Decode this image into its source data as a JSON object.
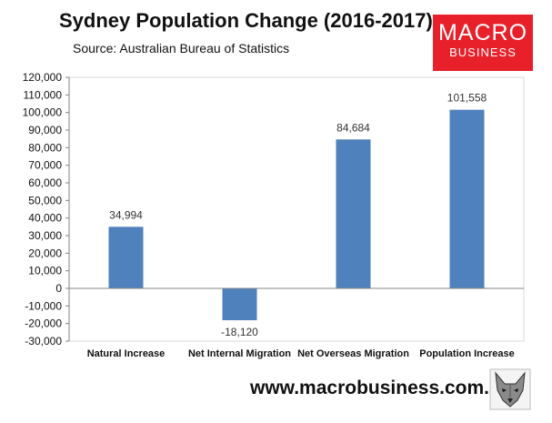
{
  "chart_data": {
    "type": "bar",
    "title": "Sydney Population Change (2016-2017)",
    "subtitle": "Source: Australian Bureau of Statistics",
    "categories": [
      "Natural Increase",
      "Net Internal Migration",
      "Net Overseas Migration",
      "Population Increase"
    ],
    "values": [
      34994,
      -18120,
      84684,
      101558
    ],
    "value_labels": [
      "34,994",
      "-18,120",
      "84,684",
      "101,558"
    ],
    "ylim": [
      -30000,
      120000
    ],
    "yticks": [
      -30000,
      -20000,
      -10000,
      0,
      10000,
      20000,
      30000,
      40000,
      50000,
      60000,
      70000,
      80000,
      90000,
      100000,
      110000,
      120000
    ],
    "ytick_labels": [
      "-30,000",
      "-20,000",
      "-10,000",
      "0",
      "10,000",
      "20,000",
      "30,000",
      "40,000",
      "50,000",
      "60,000",
      "70,000",
      "80,000",
      "90,000",
      "100,000",
      "110,000",
      "120,000"
    ],
    "xlabel": "",
    "ylabel": "",
    "grid": false,
    "bar_color": "#4f81bd"
  },
  "logo": {
    "line1": "MACRO",
    "line2": "BUSINESS",
    "color": "#e8202a"
  },
  "footer": {
    "url": "www.macrobusiness.com.au",
    "icon": "fox-head-icon"
  }
}
